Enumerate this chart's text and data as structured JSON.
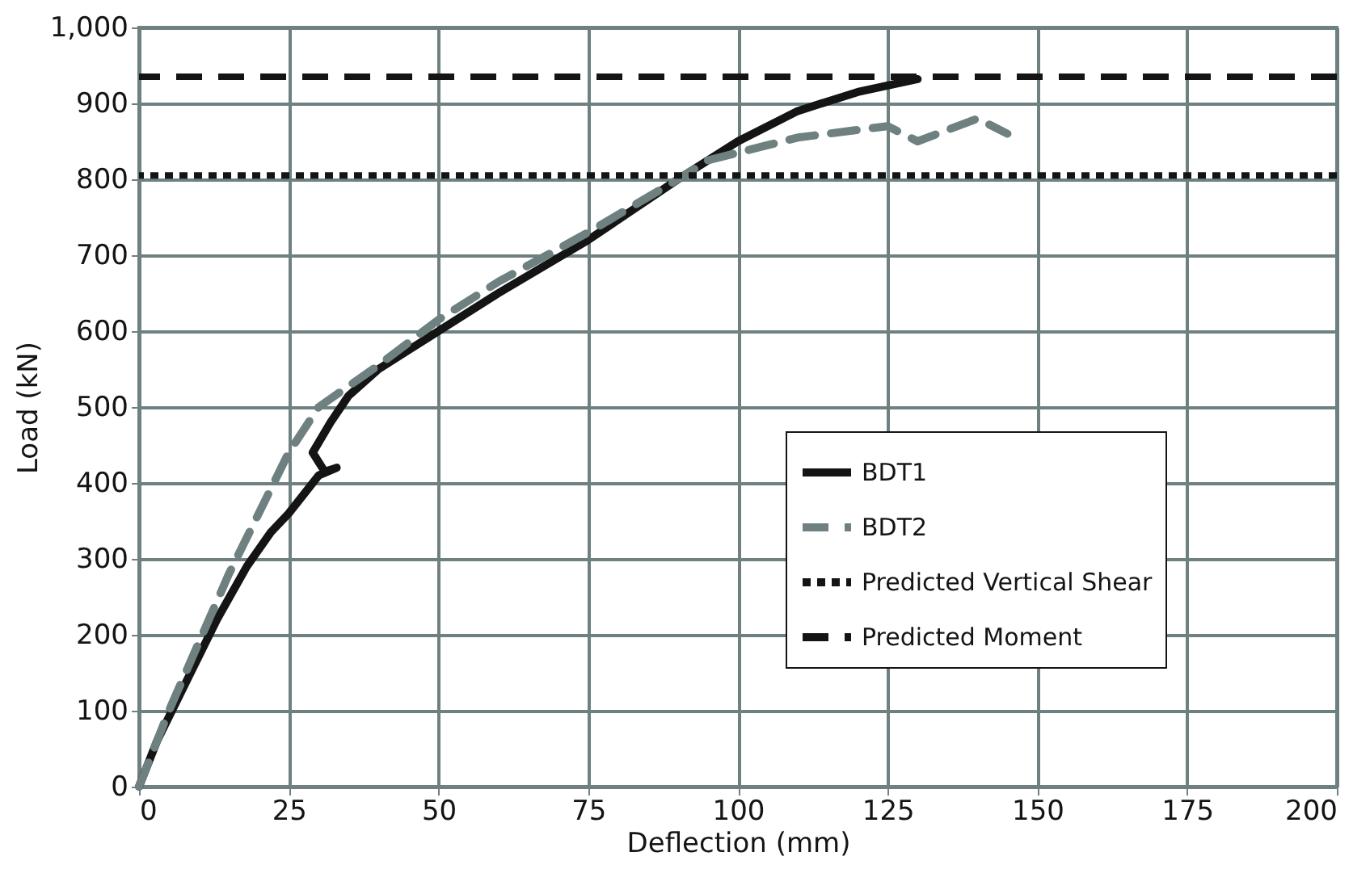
{
  "chart_data": {
    "type": "line",
    "xlabel": "Deflection (mm)",
    "ylabel": "Load (kN)",
    "xlim": [
      0,
      200
    ],
    "xticks": [
      0,
      25,
      50,
      75,
      100,
      125,
      150,
      175,
      200
    ],
    "ylim": [
      0,
      1000
    ],
    "yticks": [
      0,
      100,
      200,
      300,
      400,
      500,
      600,
      700,
      800,
      900,
      {
        "value": 1000,
        "label": "1,000"
      }
    ],
    "grid": true,
    "legend": "bottom right",
    "marker": "none",
    "series": [
      {
        "name": "BDT1",
        "color": "#141414",
        "line_style": "solid",
        "x": [
          0,
          3,
          8,
          13,
          18,
          22,
          25,
          27,
          30,
          33,
          31,
          29,
          32,
          35,
          40,
          50,
          60,
          75,
          90,
          100,
          110,
          120,
          130
        ],
        "values": [
          0,
          60,
          140,
          220,
          290,
          335,
          360,
          380,
          410,
          420,
          415,
          440,
          480,
          515,
          550,
          600,
          650,
          720,
          800,
          850,
          890,
          915,
          932
        ]
      },
      {
        "name": "BDT2",
        "color": "#6e8080",
        "line_style": "dashed",
        "x": [
          0,
          5,
          10,
          15,
          20,
          25,
          30,
          40,
          50,
          60,
          75,
          90,
          95,
          100,
          105,
          110,
          120,
          125,
          130,
          135,
          140,
          145
        ],
        "values": [
          0,
          100,
          190,
          280,
          360,
          440,
          500,
          555,
          615,
          665,
          730,
          800,
          825,
          835,
          845,
          855,
          865,
          870,
          850,
          865,
          880,
          860
        ]
      }
    ],
    "ref_lines": [
      {
        "axis": "y",
        "value": 805,
        "label": "Predicted Vertical Shear",
        "color": "#141414",
        "line_style": "dotted"
      },
      {
        "axis": "y",
        "value": 935,
        "label": "Predicted Moment",
        "color": "#141414",
        "line_style": "dashed"
      }
    ]
  }
}
